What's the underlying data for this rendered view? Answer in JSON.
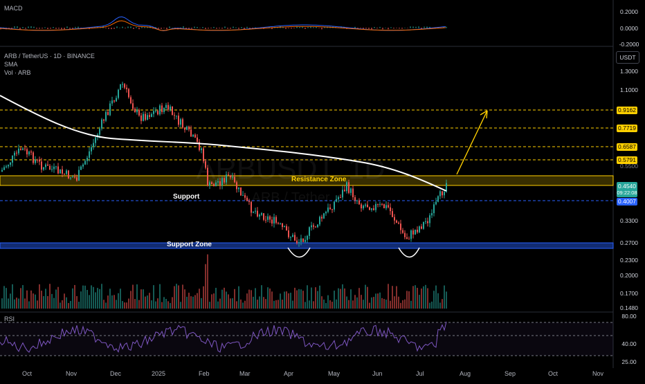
{
  "macd_panel": {
    "title": "MACD",
    "scale": [
      "0.2000",
      "0.0000",
      "-0.2000"
    ]
  },
  "main_panel": {
    "symbol_line": "ARB / TetherUS · 1D · BINANCE",
    "indicator_1": "SMA",
    "indicator_2": "Vol · ARB",
    "currency_button": "USDT",
    "watermark_symbol": "ARBUSDT, 1D",
    "watermark_name": "ARB / Tether",
    "price_scale": [
      "1.3000",
      "1.1000",
      "0.5500",
      "0.3300",
      "0.2700",
      "0.2300",
      "0.2000",
      "0.1700",
      "0.1480"
    ],
    "level_tags": [
      {
        "value": "0.9162",
        "color": "#ffd000"
      },
      {
        "value": "0.7719",
        "color": "#ffd000"
      },
      {
        "value": "0.6587",
        "color": "#ffd000"
      },
      {
        "value": "0.5791",
        "color": "#ffd000"
      }
    ],
    "last_price": {
      "value": "0.4540",
      "countdown": "09:22:08",
      "color": "#26a69a"
    },
    "support_tag": {
      "value": "0.4007",
      "color": "#2962ff"
    },
    "annotations": {
      "resistance": "Resistance Zone",
      "support": "Support",
      "support_zone": "Support Zone"
    }
  },
  "rsi_panel": {
    "title": "RSI",
    "scale": [
      "80.00",
      "40.00",
      "25.00"
    ]
  },
  "time_axis": [
    "Oct",
    "Nov",
    "Dec",
    "2025",
    "Feb",
    "Mar",
    "Apr",
    "May",
    "Jun",
    "Jul",
    "Aug",
    "Sep",
    "Oct",
    "Nov"
  ],
  "colors": {
    "up": "#26a69a",
    "down": "#ef5350",
    "sma": "#ffffff",
    "zone_yellow": "#ffd000",
    "zone_blue": "#2962ff",
    "rsi": "#7e57c2",
    "macd": "#2962ff",
    "signal": "#ff6d00",
    "arrow": "#ffd000"
  }
}
